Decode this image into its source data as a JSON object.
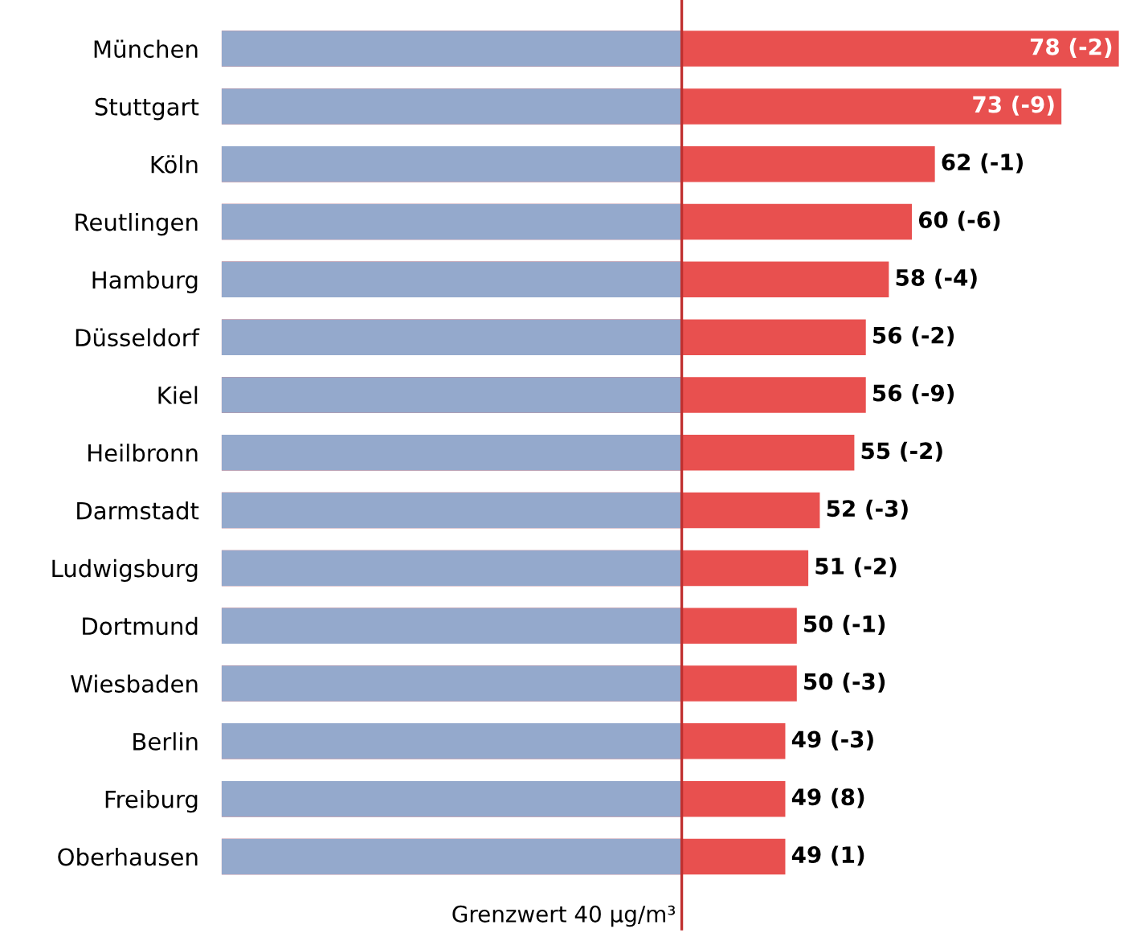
{
  "chart_data": {
    "type": "bar",
    "orientation": "horizontal",
    "tick_labels": "y",
    "grid": false,
    "categories": [
      "München",
      "Stuttgart",
      "Köln",
      "Reutlingen",
      "Hamburg",
      "Düsseldorf",
      "Kiel",
      "Heilbronn",
      "Darmstadt",
      "Ludwigsburg",
      "Dortmund",
      "Wiesbaden",
      "Berlin",
      "Freiburg",
      "Oberhausen"
    ],
    "series": [
      {
        "color": "#e8504f",
        "values": [
          78,
          73,
          62,
          60,
          58,
          56,
          56,
          55,
          52,
          51,
          50,
          50,
          49,
          49,
          49
        ],
        "value_labels": [
          "78 (-2)",
          "73 (-9)",
          "62 (-1)",
          "60 (-6)",
          "58 (-4)",
          "56 (-2)",
          "56 (-9)",
          "55 (-2)",
          "52 (-3)",
          "51 (-2)",
          "50 (-1)",
          "50 (-3)",
          "49 (-3)",
          "49 (8)",
          "49 (1)"
        ]
      }
    ],
    "bands": [
      {
        "axis": "x",
        "from": 0,
        "to": 40,
        "color": "#94a9cc"
      }
    ],
    "ref_lines": [
      {
        "axis": "x",
        "value": 40,
        "label": "Grenzwert 40 µg/m³",
        "color": "#c0302f"
      }
    ]
  }
}
